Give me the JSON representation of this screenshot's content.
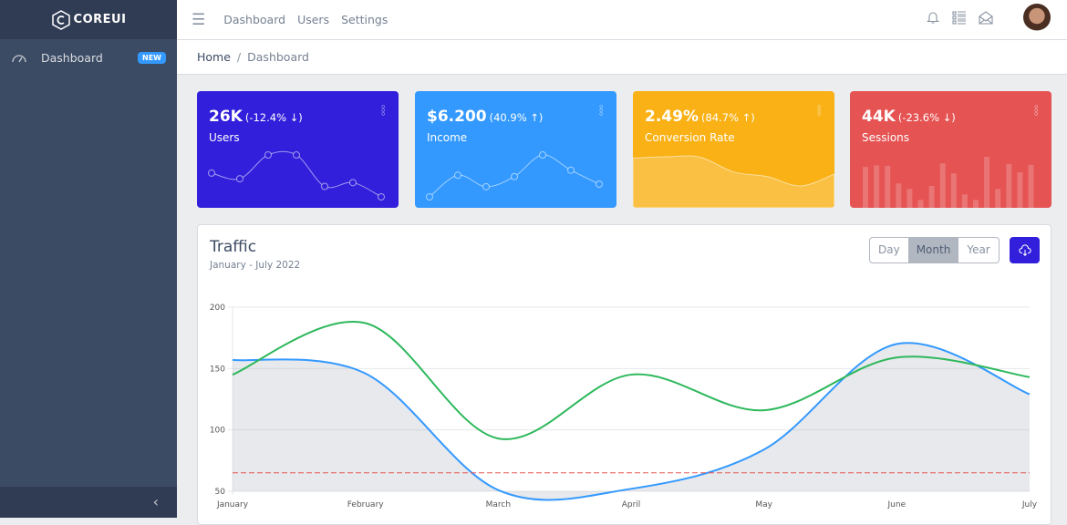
{
  "brand": "COREUI",
  "sidebar": {
    "items": [
      {
        "label": "Dashboard",
        "badge": "NEW",
        "icon": "speedometer-icon"
      }
    ],
    "toggle_icon": "chevron-left-icon"
  },
  "header": {
    "links": [
      "Dashboard",
      "Users",
      "Settings"
    ],
    "icons": [
      "bell-icon",
      "list-icon",
      "envelope-open-icon"
    ]
  },
  "breadcrumb": {
    "home": "Home",
    "current": "Dashboard"
  },
  "widgets": [
    {
      "value": "26K",
      "change": "(-12.4% ↓)",
      "title": "Users",
      "color": "#321fdb",
      "chart": "line",
      "data": [
        65,
        59,
        84,
        84,
        51,
        55,
        40
      ]
    },
    {
      "value": "$6.200",
      "change": "(40.9% ↑)",
      "title": "Income",
      "color": "#3399ff",
      "chart": "line",
      "data": [
        1,
        18,
        9,
        17,
        34,
        22,
        11
      ]
    },
    {
      "value": "2.49%",
      "change": "(84.7% ↑)",
      "title": "Conversion Rate",
      "color": "#f9b115",
      "chart": "area",
      "data": [
        78,
        81,
        80,
        45,
        34,
        12,
        40
      ]
    },
    {
      "value": "44K",
      "change": "(-23.6% ↓)",
      "title": "Sessions",
      "color": "#e55353",
      "chart": "bar",
      "data": [
        78,
        81,
        80,
        45,
        34,
        12,
        40,
        85,
        65,
        23,
        12,
        98,
        34,
        84,
        67,
        82
      ]
    }
  ],
  "traffic": {
    "title": "Traffic",
    "subtitle": "January - July 2022",
    "periods": [
      "Day",
      "Month",
      "Year"
    ],
    "active_period": "Month"
  },
  "chart_data": {
    "type": "line",
    "categories": [
      "January",
      "February",
      "March",
      "April",
      "May",
      "June",
      "July"
    ],
    "ylim": [
      50,
      200
    ],
    "yticks": [
      "50",
      "100",
      "150",
      "200"
    ],
    "grid": true,
    "series": [
      {
        "values": [
          157,
          146,
          51,
          52,
          84,
          170,
          129
        ],
        "color": "#39f",
        "fill": "rgba(177,183,193,0.3)"
      },
      {
        "values": [
          145,
          187,
          93,
          145,
          116,
          159,
          143
        ],
        "color": "#2eb85c"
      },
      {
        "values": [
          65,
          65,
          65,
          65,
          65,
          65,
          65
        ],
        "color": "#e55353",
        "dashed": true
      }
    ]
  }
}
